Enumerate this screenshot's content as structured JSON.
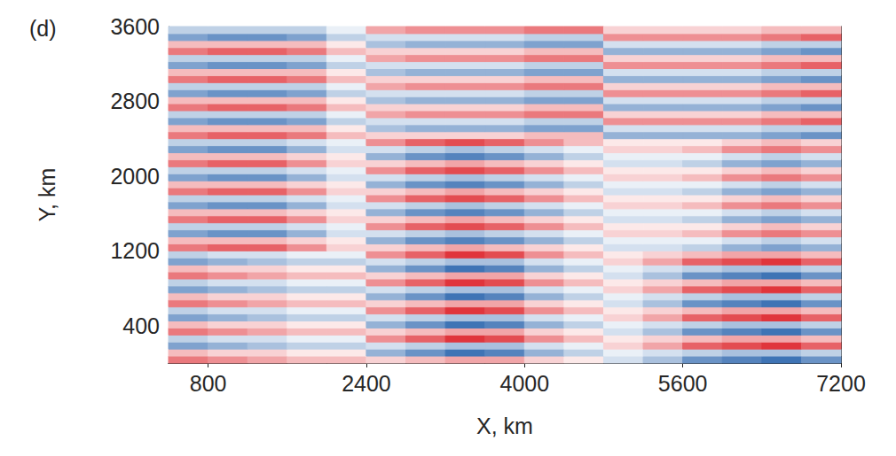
{
  "chart_data": {
    "type": "heatmap",
    "title": "(d)",
    "xlabel": "X, km",
    "ylabel": "Y, km",
    "xlim": [
      400,
      7200
    ],
    "ylim": [
      0,
      3600
    ],
    "xticks": [
      800,
      2400,
      4000,
      5600,
      7200
    ],
    "yticks": [
      400,
      1200,
      2000,
      2800,
      3600
    ],
    "grid": false,
    "color_range": [
      -1,
      1
    ],
    "x": [
      600,
      1000,
      1400,
      1800,
      2200,
      2600,
      3000,
      3400,
      3800,
      4200,
      4600,
      5000,
      5400,
      5800,
      6200,
      6600,
      7000
    ],
    "y": [
      37.5,
      112.5,
      187.5,
      262.5,
      337.5,
      412.5,
      487.5,
      562.5,
      637.5,
      712.5,
      787.5,
      862.5,
      937.5,
      1012.5,
      1087.5,
      1162.5,
      1237.5,
      1312.5,
      1387.5,
      1462.5,
      1537.5,
      1612.5,
      1687.5,
      1762.5,
      1837.5,
      1912.5,
      1987.5,
      2062.5,
      2137.5,
      2212.5,
      2287.5,
      2362.5,
      2437.5,
      2512.5,
      2587.5,
      2662.5,
      2737.5,
      2812.5,
      2887.5,
      2962.5,
      3037.5,
      3112.5,
      3187.5,
      3262.5,
      3337.5,
      3412.5,
      3487.5,
      3562.5
    ],
    "values": [
      [
        0.6,
        0.5,
        0.4,
        0.3,
        0.3,
        0.2,
        0.3,
        0.4,
        0.4,
        0.2,
        0.1,
        -0.2,
        -0.4,
        -0.7,
        -0.8,
        -0.9,
        -0.7
      ],
      [
        0.3,
        0.2,
        0.2,
        0.1,
        0.1,
        -0.5,
        -0.7,
        -0.9,
        -0.8,
        -0.5,
        -0.3,
        -0.1,
        -0.2,
        -0.3,
        -0.4,
        -0.4,
        -0.3
      ],
      [
        -0.6,
        -0.5,
        -0.4,
        -0.3,
        -0.3,
        -0.2,
        -0.3,
        -0.4,
        -0.4,
        -0.2,
        -0.1,
        0.2,
        0.4,
        0.7,
        0.8,
        0.9,
        0.7
      ],
      [
        -0.3,
        -0.2,
        -0.2,
        -0.1,
        -0.1,
        0.5,
        0.7,
        0.9,
        0.8,
        0.5,
        0.3,
        0.1,
        0.2,
        0.3,
        0.4,
        0.4,
        0.3
      ],
      [
        0.6,
        0.5,
        0.4,
        0.3,
        0.3,
        0.2,
        0.3,
        0.4,
        0.4,
        0.2,
        0.1,
        -0.2,
        -0.4,
        -0.7,
        -0.8,
        -0.9,
        -0.7
      ],
      [
        0.3,
        0.2,
        0.2,
        0.1,
        0.1,
        -0.5,
        -0.7,
        -0.9,
        -0.8,
        -0.5,
        -0.3,
        -0.1,
        -0.2,
        -0.3,
        -0.4,
        -0.4,
        -0.3
      ],
      [
        -0.6,
        -0.5,
        -0.4,
        -0.3,
        -0.3,
        -0.2,
        -0.3,
        -0.4,
        -0.4,
        -0.2,
        -0.1,
        0.2,
        0.4,
        0.7,
        0.8,
        0.9,
        0.7
      ],
      [
        -0.3,
        -0.2,
        -0.2,
        -0.1,
        -0.1,
        0.5,
        0.7,
        0.9,
        0.8,
        0.5,
        0.3,
        0.1,
        0.2,
        0.3,
        0.4,
        0.4,
        0.3
      ],
      [
        0.6,
        0.5,
        0.4,
        0.3,
        0.3,
        0.2,
        0.3,
        0.4,
        0.4,
        0.2,
        0.1,
        -0.2,
        -0.4,
        -0.7,
        -0.8,
        -0.9,
        -0.7
      ],
      [
        0.3,
        0.2,
        0.2,
        0.1,
        0.1,
        -0.5,
        -0.7,
        -0.9,
        -0.8,
        -0.5,
        -0.3,
        -0.1,
        -0.2,
        -0.3,
        -0.4,
        -0.4,
        -0.3
      ],
      [
        -0.6,
        -0.5,
        -0.4,
        -0.3,
        -0.3,
        -0.2,
        -0.3,
        -0.4,
        -0.4,
        -0.2,
        -0.1,
        0.2,
        0.4,
        0.7,
        0.8,
        0.9,
        0.7
      ],
      [
        -0.3,
        -0.2,
        -0.2,
        -0.1,
        -0.1,
        0.5,
        0.7,
        0.9,
        0.8,
        0.5,
        0.3,
        0.1,
        0.2,
        0.3,
        0.4,
        0.4,
        0.3
      ],
      [
        0.6,
        0.5,
        0.4,
        0.3,
        0.3,
        0.2,
        0.3,
        0.4,
        0.4,
        0.2,
        0.1,
        -0.2,
        -0.4,
        -0.7,
        -0.8,
        -0.9,
        -0.7
      ],
      [
        0.3,
        0.2,
        0.2,
        0.1,
        0.1,
        -0.5,
        -0.7,
        -0.9,
        -0.8,
        -0.5,
        -0.3,
        -0.1,
        -0.2,
        -0.3,
        -0.4,
        -0.4,
        -0.3
      ],
      [
        -0.6,
        -0.5,
        -0.4,
        -0.3,
        -0.3,
        -0.2,
        -0.3,
        -0.4,
        -0.4,
        -0.2,
        -0.1,
        0.2,
        0.4,
        0.7,
        0.8,
        0.9,
        0.7
      ],
      [
        -0.3,
        -0.2,
        -0.2,
        -0.1,
        -0.1,
        0.5,
        0.7,
        0.9,
        0.8,
        0.5,
        0.3,
        0.1,
        0.2,
        0.3,
        0.4,
        0.4,
        0.3
      ],
      [
        0.6,
        0.7,
        0.7,
        0.5,
        0.2,
        0.2,
        0.3,
        0.4,
        0.3,
        0.2,
        0.1,
        -0.2,
        -0.2,
        -0.3,
        -0.5,
        -0.6,
        -0.5
      ],
      [
        0.3,
        0.3,
        0.3,
        0.2,
        0.1,
        -0.5,
        -0.7,
        -0.8,
        -0.7,
        -0.5,
        -0.3,
        -0.1,
        -0.1,
        -0.1,
        -0.2,
        -0.3,
        -0.2
      ],
      [
        -0.6,
        -0.7,
        -0.7,
        -0.5,
        -0.2,
        -0.2,
        -0.3,
        -0.4,
        -0.3,
        -0.2,
        -0.1,
        0.2,
        0.2,
        0.3,
        0.5,
        0.6,
        0.5
      ],
      [
        -0.3,
        -0.3,
        -0.3,
        -0.2,
        -0.1,
        0.5,
        0.7,
        0.8,
        0.7,
        0.5,
        0.3,
        0.1,
        0.1,
        0.1,
        0.2,
        0.3,
        0.2
      ],
      [
        0.6,
        0.7,
        0.7,
        0.5,
        0.2,
        0.2,
        0.3,
        0.4,
        0.3,
        0.2,
        0.1,
        -0.2,
        -0.2,
        -0.3,
        -0.5,
        -0.6,
        -0.5
      ],
      [
        0.3,
        0.3,
        0.3,
        0.2,
        0.1,
        -0.5,
        -0.7,
        -0.8,
        -0.7,
        -0.5,
        -0.3,
        -0.1,
        -0.1,
        -0.1,
        -0.2,
        -0.3,
        -0.2
      ],
      [
        -0.6,
        -0.7,
        -0.7,
        -0.5,
        -0.2,
        -0.2,
        -0.3,
        -0.4,
        -0.3,
        -0.2,
        -0.1,
        0.2,
        0.2,
        0.3,
        0.5,
        0.6,
        0.5
      ],
      [
        -0.3,
        -0.3,
        -0.3,
        -0.2,
        -0.1,
        0.5,
        0.7,
        0.8,
        0.7,
        0.5,
        0.3,
        0.1,
        0.1,
        0.1,
        0.2,
        0.3,
        0.2
      ],
      [
        0.6,
        0.7,
        0.7,
        0.5,
        0.2,
        0.2,
        0.3,
        0.4,
        0.3,
        0.2,
        0.1,
        -0.2,
        -0.2,
        -0.3,
        -0.5,
        -0.6,
        -0.5
      ],
      [
        0.3,
        0.3,
        0.3,
        0.2,
        0.1,
        -0.5,
        -0.7,
        -0.8,
        -0.7,
        -0.5,
        -0.3,
        -0.1,
        -0.1,
        -0.1,
        -0.2,
        -0.3,
        -0.2
      ],
      [
        -0.6,
        -0.7,
        -0.7,
        -0.5,
        -0.2,
        -0.2,
        -0.3,
        -0.4,
        -0.3,
        -0.2,
        -0.1,
        0.2,
        0.2,
        0.3,
        0.5,
        0.6,
        0.5
      ],
      [
        -0.3,
        -0.3,
        -0.3,
        -0.2,
        -0.1,
        0.5,
        0.7,
        0.8,
        0.7,
        0.5,
        0.3,
        0.1,
        0.1,
        0.1,
        0.2,
        0.3,
        0.2
      ],
      [
        0.6,
        0.7,
        0.7,
        0.5,
        0.2,
        0.2,
        0.3,
        0.4,
        0.3,
        0.2,
        0.1,
        -0.2,
        -0.2,
        -0.3,
        -0.5,
        -0.6,
        -0.5
      ],
      [
        0.3,
        0.3,
        0.3,
        0.2,
        0.1,
        -0.5,
        -0.7,
        -0.8,
        -0.7,
        -0.5,
        -0.3,
        -0.1,
        -0.1,
        -0.1,
        -0.2,
        -0.3,
        -0.2
      ],
      [
        -0.6,
        -0.7,
        -0.7,
        -0.5,
        -0.2,
        -0.2,
        -0.3,
        -0.4,
        -0.3,
        -0.2,
        -0.1,
        0.2,
        0.2,
        0.3,
        0.5,
        0.6,
        0.5
      ],
      [
        -0.3,
        -0.3,
        -0.3,
        -0.2,
        -0.1,
        0.5,
        0.7,
        0.8,
        0.7,
        0.5,
        0.3,
        0.1,
        0.1,
        0.1,
        0.2,
        0.3,
        0.2
      ],
      [
        0.6,
        0.7,
        0.7,
        0.6,
        0.3,
        0.2,
        0.2,
        0.2,
        0.2,
        0.3,
        0.3,
        -0.5,
        -0.5,
        -0.5,
        -0.5,
        -0.6,
        -0.7
      ],
      [
        0.3,
        0.3,
        0.3,
        0.3,
        0.1,
        -0.4,
        -0.5,
        -0.5,
        -0.5,
        -0.6,
        -0.6,
        -0.2,
        -0.2,
        -0.2,
        -0.2,
        -0.3,
        -0.3
      ],
      [
        -0.6,
        -0.7,
        -0.7,
        -0.6,
        -0.3,
        -0.2,
        -0.2,
        -0.2,
        -0.2,
        -0.3,
        -0.3,
        0.5,
        0.5,
        0.5,
        0.5,
        0.6,
        0.7
      ],
      [
        -0.3,
        -0.3,
        -0.3,
        -0.3,
        -0.1,
        0.4,
        0.5,
        0.5,
        0.5,
        0.6,
        0.6,
        0.2,
        0.2,
        0.2,
        0.2,
        0.3,
        0.3
      ],
      [
        0.6,
        0.7,
        0.7,
        0.6,
        0.3,
        0.2,
        0.2,
        0.2,
        0.2,
        0.3,
        0.3,
        -0.5,
        -0.5,
        -0.5,
        -0.5,
        -0.6,
        -0.7
      ],
      [
        0.3,
        0.3,
        0.3,
        0.3,
        0.1,
        -0.4,
        -0.5,
        -0.5,
        -0.5,
        -0.6,
        -0.6,
        -0.2,
        -0.2,
        -0.2,
        -0.2,
        -0.3,
        -0.3
      ],
      [
        -0.6,
        -0.7,
        -0.7,
        -0.6,
        -0.3,
        -0.2,
        -0.2,
        -0.2,
        -0.2,
        -0.3,
        -0.3,
        0.5,
        0.5,
        0.5,
        0.5,
        0.6,
        0.7
      ],
      [
        -0.3,
        -0.3,
        -0.3,
        -0.3,
        -0.1,
        0.4,
        0.5,
        0.5,
        0.5,
        0.6,
        0.6,
        0.2,
        0.2,
        0.2,
        0.2,
        0.3,
        0.3
      ],
      [
        0.6,
        0.7,
        0.7,
        0.6,
        0.3,
        0.2,
        0.2,
        0.2,
        0.2,
        0.3,
        0.3,
        -0.5,
        -0.5,
        -0.5,
        -0.5,
        -0.6,
        -0.7
      ],
      [
        0.3,
        0.3,
        0.3,
        0.3,
        0.1,
        -0.4,
        -0.5,
        -0.5,
        -0.5,
        -0.6,
        -0.6,
        -0.2,
        -0.2,
        -0.2,
        -0.2,
        -0.3,
        -0.3
      ],
      [
        -0.6,
        -0.7,
        -0.7,
        -0.6,
        -0.3,
        -0.2,
        -0.2,
        -0.2,
        -0.2,
        -0.3,
        -0.3,
        0.5,
        0.5,
        0.5,
        0.5,
        0.6,
        0.7
      ],
      [
        -0.3,
        -0.3,
        -0.3,
        -0.3,
        -0.1,
        0.4,
        0.5,
        0.5,
        0.5,
        0.6,
        0.6,
        0.2,
        0.2,
        0.2,
        0.2,
        0.3,
        0.3
      ],
      [
        0.6,
        0.7,
        0.7,
        0.6,
        0.3,
        0.2,
        0.2,
        0.2,
        0.2,
        0.3,
        0.3,
        -0.5,
        -0.5,
        -0.5,
        -0.5,
        -0.6,
        -0.7
      ],
      [
        0.3,
        0.3,
        0.3,
        0.3,
        0.1,
        -0.4,
        -0.5,
        -0.5,
        -0.5,
        -0.6,
        -0.6,
        -0.2,
        -0.2,
        -0.2,
        -0.2,
        -0.3,
        -0.3
      ],
      [
        -0.6,
        -0.7,
        -0.7,
        -0.6,
        -0.3,
        -0.2,
        -0.2,
        -0.2,
        -0.2,
        -0.3,
        -0.3,
        0.5,
        0.5,
        0.5,
        0.5,
        0.6,
        0.7
      ],
      [
        -0.3,
        -0.3,
        -0.3,
        -0.3,
        -0.1,
        0.4,
        0.5,
        0.5,
        0.5,
        0.6,
        0.6,
        0.2,
        0.2,
        0.2,
        0.2,
        0.3,
        0.3
      ]
    ]
  }
}
